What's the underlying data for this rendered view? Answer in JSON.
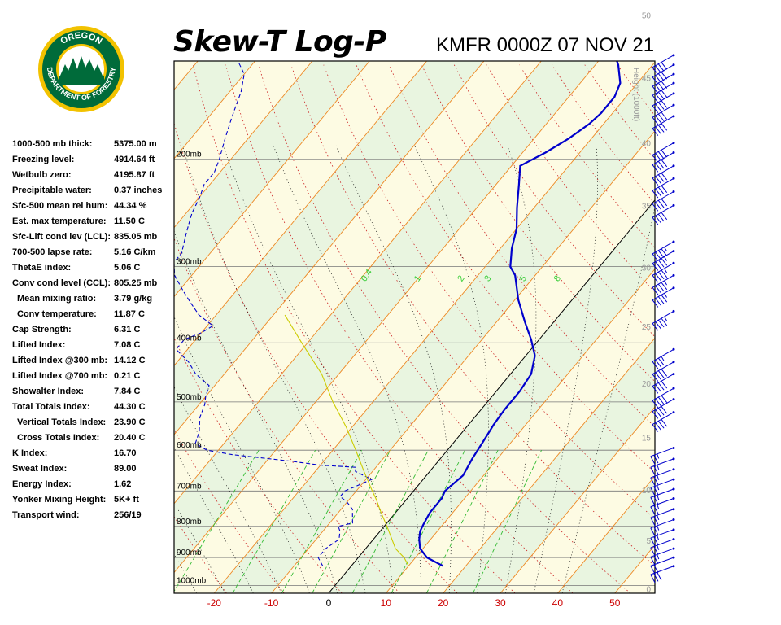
{
  "header": {
    "title": "Skew-T Log-P",
    "subtitle": "KMFR 0000Z 07 NOV 21"
  },
  "logo": {
    "top_text": "OREGON",
    "bottom_text": "DEPARTMENT OF FORESTRY",
    "colors": {
      "ring": "#f2c200",
      "green": "#006b3a",
      "sky": "#ffffff"
    }
  },
  "indices": [
    {
      "label": "1000-500 mb thick:",
      "value": "5375.00 m"
    },
    {
      "label": "Freezing level:",
      "value": "4914.64 ft"
    },
    {
      "label": "Wetbulb zero:",
      "value": "4195.87 ft"
    },
    {
      "label": "Precipitable water:",
      "value": "0.37 inches"
    },
    {
      "label": "Sfc-500 mean rel hum:",
      "value": "44.34 %"
    },
    {
      "label": "Est. max temperature:",
      "value": "11.50 C"
    },
    {
      "label": "Sfc-Lift cond lev (LCL):",
      "value": "835.05 mb"
    },
    {
      "label": "700-500 lapse rate:",
      "value": "5.16 C/km"
    },
    {
      "label": "ThetaE index:",
      "value": "5.06 C"
    },
    {
      "label": "Conv cond level (CCL):",
      "value": "805.25 mb"
    },
    {
      "label": "Mean mixing ratio:",
      "value": "3.79 g/kg",
      "indent": true
    },
    {
      "label": "Conv temperature:",
      "value": "11.87 C",
      "indent": true
    },
    {
      "label": "Cap Strength:",
      "value": "6.31 C"
    },
    {
      "label": "Lifted Index:",
      "value": "7.08 C"
    },
    {
      "label": "Lifted Index @300 mb:",
      "value": "14.12 C"
    },
    {
      "label": "Lifted Index @700 mb:",
      "value": "0.21 C"
    },
    {
      "label": "Showalter Index:",
      "value": "7.84 C"
    },
    {
      "label": "Total Totals Index:",
      "value": "44.30 C"
    },
    {
      "label": "Vertical Totals Index:",
      "value": "23.90 C",
      "indent": true
    },
    {
      "label": "Cross Totals Index:",
      "value": "20.40 C",
      "indent": true
    },
    {
      "label": "K Index:",
      "value": "16.70"
    },
    {
      "label": "Sweat Index:",
      "value": "89.00"
    },
    {
      "label": "Energy Index:",
      "value": "1.62"
    },
    {
      "label": "Yonker Mixing Height:",
      "value": "5K+ ft"
    },
    {
      "label": "Transport wind:",
      "value": "256/19"
    }
  ],
  "chart_data": {
    "type": "line",
    "title": "Skew-T Log-P",
    "subtitle": "KMFR 0000Z 07 NOV 21",
    "pressure_levels": [
      {
        "p": 200,
        "label": "200mb"
      },
      {
        "p": 300,
        "label": "300mb"
      },
      {
        "p": 400,
        "label": "400mb"
      },
      {
        "p": 500,
        "label": "500mb"
      },
      {
        "p": 600,
        "label": "600mb"
      },
      {
        "p": 700,
        "label": "700mb"
      },
      {
        "p": 800,
        "label": "800mb"
      },
      {
        "p": 900,
        "label": "900mb"
      },
      {
        "p": 1000,
        "label": "1000mb"
      }
    ],
    "ylim_mb": [
      1030,
      138
    ],
    "x_ticks": [
      -20,
      -10,
      0,
      10,
      20,
      30,
      40,
      50
    ],
    "xlim_c": [
      -27,
      57
    ],
    "height_axis": {
      "label": "Height (1000ft)",
      "ticks": [
        {
          "kft": 0,
          "p": 1013
        },
        {
          "kft": 5,
          "p": 843
        },
        {
          "kft": 10,
          "p": 697
        },
        {
          "kft": 15,
          "p": 572
        },
        {
          "kft": 20,
          "p": 466
        },
        {
          "kft": 25,
          "p": 376
        },
        {
          "kft": 30,
          "p": 301
        },
        {
          "kft": 35,
          "p": 238
        },
        {
          "kft": 40,
          "p": 188
        },
        {
          "kft": 45,
          "p": 147
        },
        {
          "kft": 50,
          "p": 116
        }
      ]
    },
    "mixing_ratio_labels": [
      "0.4",
      "1",
      "2",
      "3",
      "5",
      "8"
    ],
    "series": [
      {
        "name": "Temperature",
        "color": "#0000cc",
        "points": [
          [
            929,
            16
          ],
          [
            900,
            12
          ],
          [
            870,
            9.5
          ],
          [
            840,
            8
          ],
          [
            815,
            7
          ],
          [
            795,
            6.6
          ],
          [
            760,
            6
          ],
          [
            720,
            6
          ],
          [
            700,
            5.5
          ],
          [
            660,
            6.4
          ],
          [
            620,
            5.6
          ],
          [
            580,
            5
          ],
          [
            545,
            4.4
          ],
          [
            515,
            4.1
          ],
          [
            480,
            4.1
          ],
          [
            450,
            3.6
          ],
          [
            420,
            1.6
          ],
          [
            395,
            -1.4
          ],
          [
            370,
            -5
          ],
          [
            340,
            -9.4
          ],
          [
            310,
            -13.5
          ],
          [
            300,
            -15.6
          ],
          [
            280,
            -18
          ],
          [
            260,
            -20
          ],
          [
            240,
            -23
          ],
          [
            220,
            -26
          ],
          [
            205,
            -28.5
          ],
          [
            195,
            -26
          ],
          [
            185,
            -24
          ],
          [
            175,
            -22.5
          ],
          [
            168,
            -22
          ],
          [
            158,
            -22
          ],
          [
            150,
            -23
          ],
          [
            140,
            -26
          ],
          [
            135,
            -28
          ]
        ]
      },
      {
        "name": "Dewpoint",
        "color": "#0000cc",
        "dashed": true,
        "points": [
          [
            929,
            -5
          ],
          [
            900,
            -7
          ],
          [
            870,
            -7
          ],
          [
            840,
            -6
          ],
          [
            815,
            -7
          ],
          [
            800,
            -8
          ],
          [
            790,
            -6
          ],
          [
            770,
            -7
          ],
          [
            750,
            -8
          ],
          [
            730,
            -10
          ],
          [
            715,
            -12
          ],
          [
            700,
            -12
          ],
          [
            690,
            -11
          ],
          [
            670,
            -9
          ],
          [
            660,
            -11
          ],
          [
            650,
            -13
          ],
          [
            640,
            -13.5
          ],
          [
            635,
            -20
          ],
          [
            625,
            -26
          ],
          [
            610,
            -37
          ],
          [
            600,
            -42
          ],
          [
            585,
            -45
          ],
          [
            560,
            -46
          ],
          [
            530,
            -48
          ],
          [
            505,
            -49
          ],
          [
            490,
            -50
          ],
          [
            470,
            -51
          ],
          [
            450,
            -55
          ],
          [
            430,
            -58
          ],
          [
            410,
            -62
          ],
          [
            395,
            -62
          ],
          [
            385,
            -60
          ],
          [
            375,
            -59
          ],
          [
            360,
            -63
          ],
          [
            345,
            -66
          ],
          [
            330,
            -69
          ],
          [
            310,
            -73
          ],
          [
            295,
            -75
          ],
          [
            285,
            -75
          ],
          [
            275,
            -76
          ],
          [
            265,
            -77
          ],
          [
            255,
            -78
          ],
          [
            245,
            -79
          ],
          [
            230,
            -80
          ],
          [
            220,
            -81
          ],
          [
            210,
            -81
          ],
          [
            200,
            -82
          ],
          [
            185,
            -84
          ],
          [
            170,
            -86
          ],
          [
            155,
            -88
          ],
          [
            145,
            -90
          ],
          [
            138,
            -93
          ]
        ]
      },
      {
        "name": "Parcel",
        "color": "#cccc00",
        "points": [
          [
            929,
            10
          ],
          [
            900,
            8
          ],
          [
            870,
            5.2
          ],
          [
            835,
            2.9
          ],
          [
            800,
            0.5
          ],
          [
            760,
            -2.5
          ],
          [
            720,
            -5.5
          ],
          [
            700,
            -7.2
          ],
          [
            650,
            -11.5
          ],
          [
            600,
            -16
          ],
          [
            550,
            -21
          ],
          [
            500,
            -27
          ],
          [
            450,
            -33
          ],
          [
            400,
            -41
          ],
          [
            360,
            -48
          ]
        ]
      }
    ],
    "winds": [
      {
        "p": 930,
        "dir": 250,
        "spd": 30
      },
      {
        "p": 900,
        "dir": 250,
        "spd": 20
      },
      {
        "p": 870,
        "dir": 250,
        "spd": 25
      },
      {
        "p": 840,
        "dir": 250,
        "spd": 25
      },
      {
        "p": 810,
        "dir": 250,
        "spd": 25
      },
      {
        "p": 780,
        "dir": 250,
        "spd": 25
      },
      {
        "p": 750,
        "dir": 250,
        "spd": 25
      },
      {
        "p": 720,
        "dir": 250,
        "spd": 25
      },
      {
        "p": 695,
        "dir": 250,
        "spd": 25
      },
      {
        "p": 670,
        "dir": 250,
        "spd": 25
      },
      {
        "p": 645,
        "dir": 250,
        "spd": 25
      },
      {
        "p": 620,
        "dir": 250,
        "spd": 25
      },
      {
        "p": 595,
        "dir": 250,
        "spd": 25
      },
      {
        "p": 520,
        "dir": 240,
        "spd": 40
      },
      {
        "p": 495,
        "dir": 240,
        "spd": 40
      },
      {
        "p": 475,
        "dir": 240,
        "spd": 40
      },
      {
        "p": 450,
        "dir": 240,
        "spd": 40
      },
      {
        "p": 430,
        "dir": 240,
        "spd": 40
      },
      {
        "p": 410,
        "dir": 240,
        "spd": 35
      },
      {
        "p": 355,
        "dir": 240,
        "spd": 45
      },
      {
        "p": 325,
        "dir": 240,
        "spd": 45
      },
      {
        "p": 310,
        "dir": 240,
        "spd": 45
      },
      {
        "p": 296,
        "dir": 240,
        "spd": 45
      },
      {
        "p": 283,
        "dir": 240,
        "spd": 45
      },
      {
        "p": 273,
        "dir": 240,
        "spd": 45
      },
      {
        "p": 238,
        "dir": 240,
        "spd": 40
      },
      {
        "p": 226,
        "dir": 240,
        "spd": 40
      },
      {
        "p": 215,
        "dir": 240,
        "spd": 40
      },
      {
        "p": 205,
        "dir": 240,
        "spd": 40
      },
      {
        "p": 195,
        "dir": 240,
        "spd": 40
      },
      {
        "p": 188,
        "dir": 240,
        "spd": 40
      },
      {
        "p": 170,
        "dir": 240,
        "spd": 40
      },
      {
        "p": 163,
        "dir": 240,
        "spd": 40
      },
      {
        "p": 156,
        "dir": 240,
        "spd": 40
      },
      {
        "p": 150,
        "dir": 240,
        "spd": 40
      },
      {
        "p": 145,
        "dir": 240,
        "spd": 40
      },
      {
        "p": 140,
        "dir": 240,
        "spd": 40
      },
      {
        "p": 135,
        "dir": 240,
        "spd": 40
      }
    ],
    "colors": {
      "background": "#fdfbe3",
      "band_light": "#e9f5e0",
      "isotherm": "#ee8822",
      "dry_adiabat": "#cc2222",
      "moist_adiabat": "#111111",
      "mixing_ratio": "#33bb33",
      "isobar": "#777777",
      "zero_isotherm": "#000000"
    }
  }
}
